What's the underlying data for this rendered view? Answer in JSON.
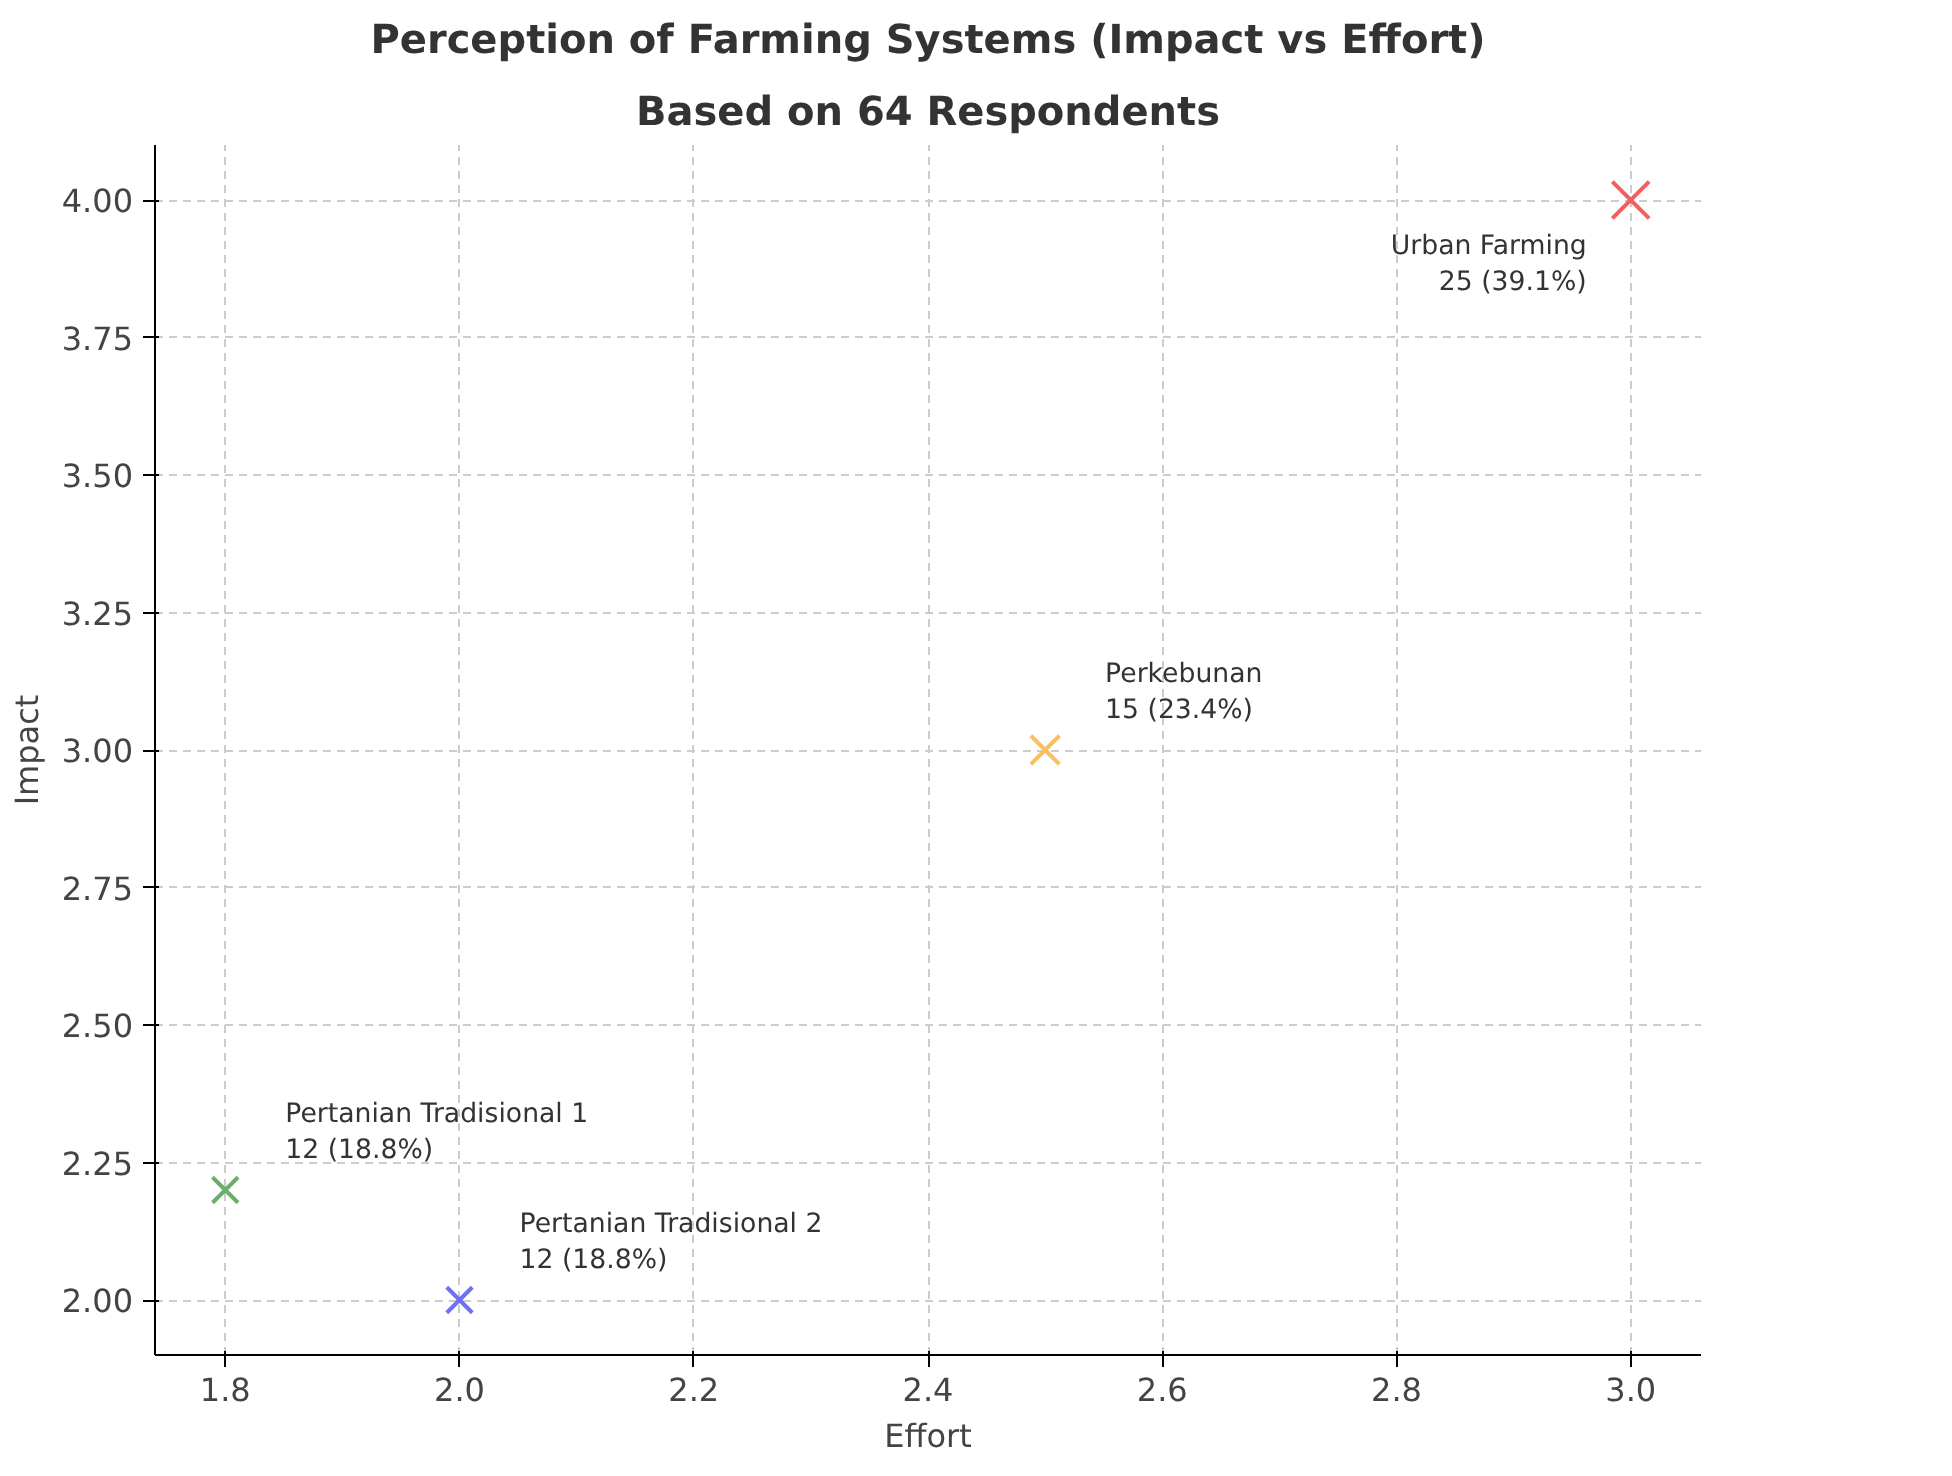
{
  "chart_data": {
    "type": "bubble",
    "title": "Perception of Farming Systems (Impact vs Effort)",
    "subtitle": "Based on 64 Respondents",
    "xlabel": "Effort",
    "ylabel": "Impact",
    "x": [
      1.8,
      2.0,
      2.5,
      3.0
    ],
    "values": [
      2.2,
      2.0,
      3.0,
      4.0
    ],
    "sizes": [
      0.48,
      0.48,
      0.6,
      1.0
    ],
    "colors": [
      "#6ab06a",
      "#7070f0",
      "#f8c060",
      "#f06060"
    ],
    "marker": "cross",
    "annotations": [
      {
        "text": "Pertanian Tradisional 1\n12 (18.8%)",
        "x": 1.8,
        "y": 2.2
      },
      {
        "text": "Pertanian Tradisional 2\n12 (18.8%)",
        "x": 2.0,
        "y": 2.0
      },
      {
        "text": "Perkebunan\n15 (23.4%)",
        "x": 2.5,
        "y": 3.0
      },
      {
        "text": "Urban Farming\n25 (39.1%)",
        "x": 3.0,
        "y": 4.0
      }
    ],
    "xlim": [
      1.74,
      3.06
    ],
    "ylim": [
      1.9,
      4.1
    ],
    "xticks": [
      1.8,
      {
        "value": 2.0,
        "label": "2.0"
      },
      2.2,
      2.4,
      2.6,
      2.8,
      {
        "value": 3.0,
        "label": "3.0"
      }
    ],
    "yticks": [
      {
        "value": 2.0,
        "label": "2.00"
      },
      {
        "value": 2.25,
        "label": "2.25"
      },
      {
        "value": 2.5,
        "label": "2.50"
      },
      {
        "value": 2.75,
        "label": "2.75"
      },
      {
        "value": 3.0,
        "label": "3.00"
      },
      {
        "value": 3.25,
        "label": "3.25"
      },
      {
        "value": 3.5,
        "label": "3.50"
      },
      {
        "value": 3.75,
        "label": "3.75"
      },
      {
        "value": 4.0,
        "label": "4.00"
      }
    ],
    "grid": true
  }
}
